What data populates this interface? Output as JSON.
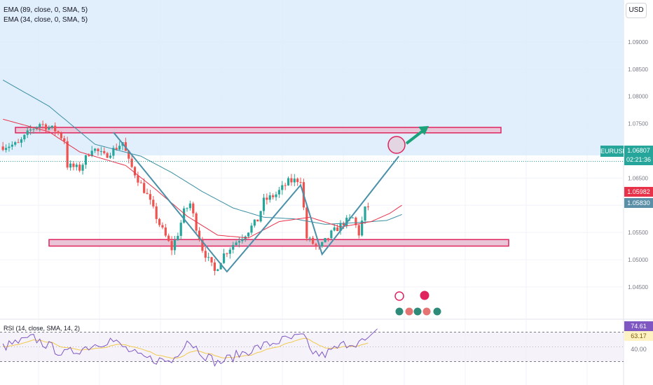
{
  "header": {
    "indicator_1": "EMA (89, close, 0, SMA, 5)",
    "indicator_2": "EMA (34, close, 0, SMA, 5)",
    "currency": "USD"
  },
  "price_tag": {
    "symbol": "EURUSD",
    "price": "1.06807",
    "countdown": "02:21:36",
    "ema34": "1.05982",
    "ema89": "1.05830"
  },
  "rsi": {
    "label": "RSI (14, close, SMA, 14, 2)",
    "value": "74.61",
    "sma_value": "63.17",
    "level_40": "40.00",
    "upper_band": 70,
    "lower_band": 30
  },
  "colors": {
    "up": "#26a69a",
    "down": "#ef5350",
    "ema34": "#e8324a",
    "ema89": "#3a8fa3",
    "zone_fill": "#e9c4d6",
    "zone_border": "#e0245e",
    "trendline": "#4a90a8",
    "arrow": "#1aa37a",
    "rsi_line": "#7e57c2",
    "rsi_sma": "#f2c94c"
  },
  "chart_data": {
    "type": "candlestick",
    "symbol": "EURUSD",
    "y_ticks": [
      1.09,
      1.085,
      1.08,
      1.075,
      1.07,
      1.065,
      1.06,
      1.055,
      1.05,
      1.045
    ],
    "ylim": [
      1.0392,
      1.0977
    ],
    "candle_count": 120,
    "anchors": [
      [
        0,
        1.0708
      ],
      [
        6,
        1.0712
      ],
      [
        10,
        1.0738
      ],
      [
        13,
        1.075
      ],
      [
        18,
        1.0738
      ],
      [
        21,
        1.072
      ],
      [
        22,
        1.0673
      ],
      [
        26,
        1.0667
      ],
      [
        30,
        1.0706
      ],
      [
        34,
        1.069
      ],
      [
        38,
        1.0706
      ],
      [
        40,
        1.0716
      ],
      [
        42,
        1.068
      ],
      [
        45,
        1.0648
      ],
      [
        48,
        1.0618
      ],
      [
        52,
        1.0565
      ],
      [
        56,
        1.052
      ],
      [
        58,
        1.0548
      ],
      [
        60,
        1.0588
      ],
      [
        62,
        1.0603
      ],
      [
        64,
        1.056
      ],
      [
        66,
        1.052
      ],
      [
        70,
        1.0478
      ],
      [
        73,
        1.051
      ],
      [
        76,
        1.0528
      ],
      [
        80,
        1.0548
      ],
      [
        84,
        1.0573
      ],
      [
        86,
        1.0608
      ],
      [
        90,
        1.062
      ],
      [
        94,
        1.0643
      ],
      [
        98,
        1.0648
      ],
      [
        100,
        1.054
      ],
      [
        104,
        1.052
      ],
      [
        108,
        1.0548
      ],
      [
        112,
        1.0568
      ],
      [
        115,
        1.0576
      ],
      [
        117,
        1.0548
      ],
      [
        119,
        1.0592
      ],
      [
        120,
        1.0598
      ],
      [
        122,
        1.0572
      ],
      [
        126,
        1.0598
      ],
      [
        129,
        1.068
      ]
    ],
    "ema34_anchors": [
      [
        0,
        1.0758
      ],
      [
        15,
        1.0735
      ],
      [
        25,
        1.0698
      ],
      [
        40,
        1.0673
      ],
      [
        50,
        1.0628
      ],
      [
        60,
        1.058
      ],
      [
        70,
        1.0545
      ],
      [
        80,
        1.054
      ],
      [
        90,
        1.057
      ],
      [
        100,
        1.0578
      ],
      [
        110,
        1.056
      ],
      [
        120,
        1.057
      ],
      [
        126,
        1.0585
      ],
      [
        130,
        1.06
      ]
    ],
    "ema89_anchors": [
      [
        0,
        1.083
      ],
      [
        15,
        1.0782
      ],
      [
        30,
        1.0712
      ],
      [
        45,
        1.069
      ],
      [
        55,
        1.066
      ],
      [
        65,
        1.0625
      ],
      [
        75,
        1.0595
      ],
      [
        85,
        1.0578
      ],
      [
        95,
        1.0575
      ],
      [
        105,
        1.0565
      ],
      [
        115,
        1.0568
      ],
      [
        125,
        1.0572
      ],
      [
        130,
        1.0583
      ]
    ],
    "resistance_zone": [
      1.0733,
      1.0743
    ],
    "support_zone": [
      1.0525,
      1.0537
    ],
    "trendline_points": [
      [
        36,
        1.0734
      ],
      [
        73,
        1.0478
      ],
      [
        97,
        1.0637
      ],
      [
        104,
        1.051
      ],
      [
        129,
        1.069
      ]
    ],
    "current_price": 1.06807,
    "rsi_values": "generated"
  }
}
